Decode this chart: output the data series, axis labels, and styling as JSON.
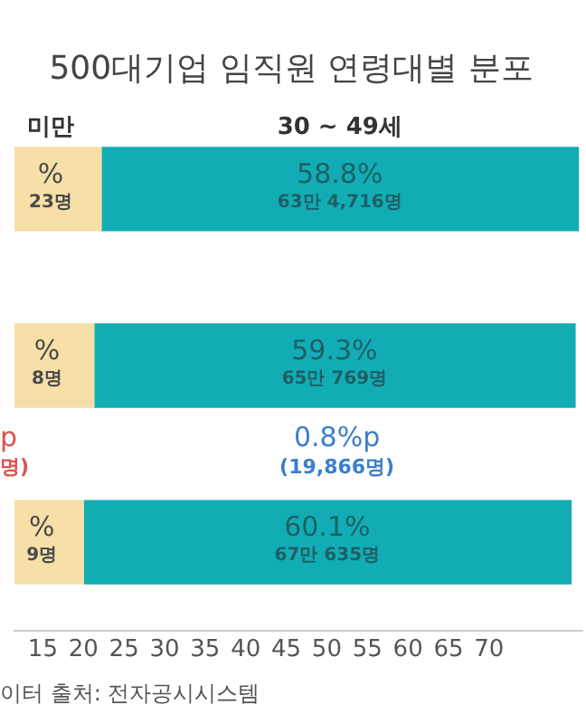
{
  "chart_data": {
    "type": "bar",
    "orientation": "horizontal",
    "stacked": true,
    "title": "500대기업 임직원 연령대별 분포",
    "categories": [
      null,
      null,
      null
    ],
    "series": [
      {
        "name": "미만",
        "color": "#f6e0a8",
        "values": [
          22.2,
          21.3,
          20.0
        ]
      },
      {
        "name": "30 ~ 49세",
        "color": "#12adb4",
        "values": [
          58.8,
          59.3,
          60.1
        ],
        "value_labels": [
          "58.8%\n63만 4,716명",
          "59.3%\n65만 769명",
          "60.1%\n67만 635명"
        ]
      }
    ],
    "xlim": [
      11.5,
      81.5
    ],
    "xticks": [
      15,
      20,
      25,
      30,
      35,
      40,
      45,
      50,
      55,
      60,
      65,
      70
    ],
    "tick_labels": "x",
    "grid": false,
    "legend": false,
    "annotations": [
      "%\n23명",
      "%\n8명",
      "%\n9명",
      "p\n명)",
      "0.8%p\n(19,866명)",
      "이터 출처: 전자공시시스템"
    ]
  }
}
